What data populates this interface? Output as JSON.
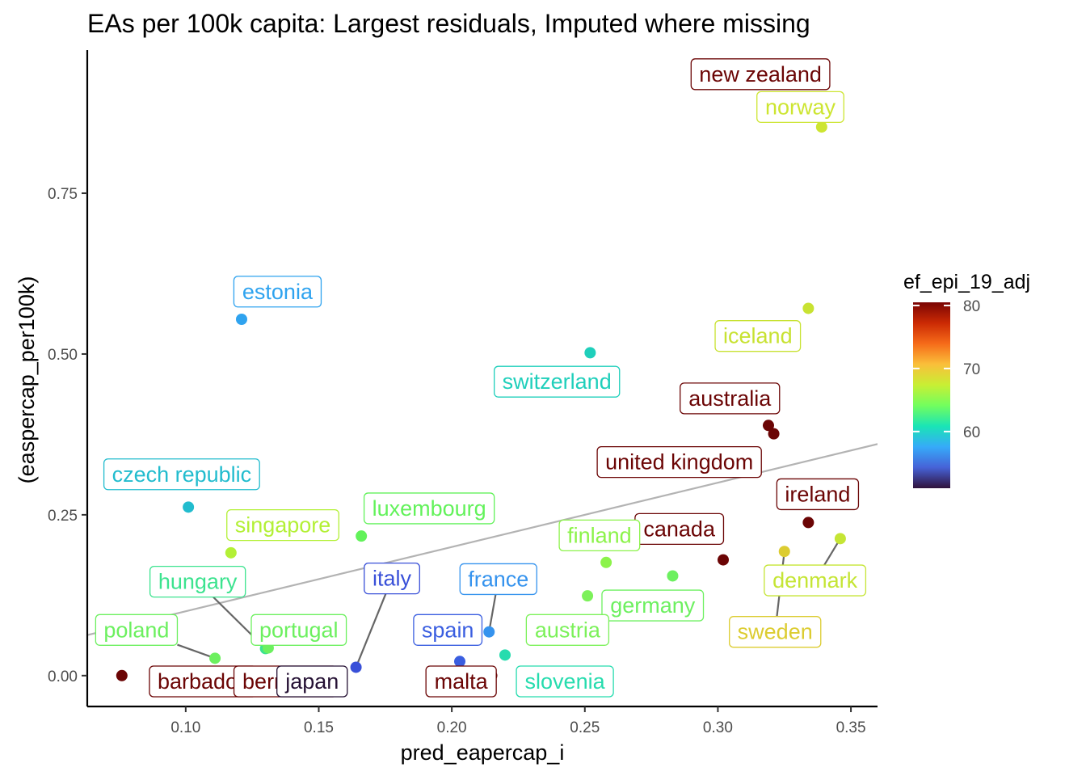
{
  "chart_data": {
    "type": "scatter",
    "title": "EAs per 100k capita: Largest residuals, Imputed where missing",
    "xlabel": "pred_eapercap_i",
    "ylabel": "(easpercap_per100k)",
    "xlim": [
      0.063,
      0.36
    ],
    "ylim": [
      -0.048,
      0.975
    ],
    "x_ticks": [
      {
        "value": 0.1,
        "label": "0.10"
      },
      {
        "value": 0.15,
        "label": "0.15"
      },
      {
        "value": 0.2,
        "label": "0.20"
      },
      {
        "value": 0.25,
        "label": "0.25"
      },
      {
        "value": 0.3,
        "label": "0.30"
      },
      {
        "value": 0.35,
        "label": "0.35"
      }
    ],
    "y_ticks": [
      {
        "value": 0.0,
        "label": "0.00"
      },
      {
        "value": 0.25,
        "label": "0.25"
      },
      {
        "value": 0.5,
        "label": "0.50"
      },
      {
        "value": 0.75,
        "label": "0.75"
      }
    ],
    "grid": false,
    "fit_line": {
      "slope": 1.0,
      "intercept": 0.0,
      "color": "#b3b3b3"
    },
    "legend": {
      "title": "ef_epi_19_adj",
      "placement": "right",
      "range": [
        51,
        80.5
      ],
      "ticks": [
        {
          "value": 60,
          "label": "60"
        },
        {
          "value": 70,
          "label": "70"
        },
        {
          "value": 80,
          "label": "80"
        }
      ],
      "palette": [
        "#30123b",
        "#4662d7",
        "#36aaf9",
        "#1ae4b6",
        "#72fe5e",
        "#c8ef34",
        "#fabf3a",
        "#f66b19",
        "#cb2a04",
        "#7a0403"
      ]
    },
    "points": [
      {
        "name": "new zealand",
        "x": 0.334,
        "y": 0.925,
        "color": "#6b0505"
      },
      {
        "name": "norway",
        "x": 0.339,
        "y": 0.853,
        "color": "#cde531"
      },
      {
        "name": "iceland",
        "x": 0.334,
        "y": 0.571,
        "color": "#c8e232"
      },
      {
        "name": "estonia",
        "x": 0.121,
        "y": 0.554,
        "color": "#2fa3ef"
      },
      {
        "name": "switzerland",
        "x": 0.252,
        "y": 0.502,
        "color": "#1fcfbb"
      },
      {
        "name": "australia",
        "x": 0.319,
        "y": 0.389,
        "color": "#6b0505"
      },
      {
        "name": "united kingdom",
        "x": 0.321,
        "y": 0.376,
        "color": "#6b0505"
      },
      {
        "name": "czech republic",
        "x": 0.101,
        "y": 0.262,
        "color": "#22bcce"
      },
      {
        "name": "ireland",
        "x": 0.334,
        "y": 0.238,
        "color": "#6b0505"
      },
      {
        "name": "luxembourg",
        "x": 0.166,
        "y": 0.217,
        "color": "#62f25a"
      },
      {
        "name": "denmark",
        "x": 0.346,
        "y": 0.213,
        "color": "#c5e535"
      },
      {
        "name": "sweden",
        "x": 0.325,
        "y": 0.193,
        "color": "#dccc31"
      },
      {
        "name": "singapore",
        "x": 0.117,
        "y": 0.191,
        "color": "#b3f036"
      },
      {
        "name": "canada",
        "x": 0.302,
        "y": 0.18,
        "color": "#6b0505"
      },
      {
        "name": "finland",
        "x": 0.258,
        "y": 0.176,
        "color": "#8cf34a"
      },
      {
        "name": "germany",
        "x": 0.283,
        "y": 0.155,
        "color": "#6df060"
      },
      {
        "name": "austria",
        "x": 0.251,
        "y": 0.124,
        "color": "#7cf15a"
      },
      {
        "name": "france",
        "x": 0.214,
        "y": 0.068,
        "color": "#3593ee"
      },
      {
        "name": "hungary",
        "x": 0.13,
        "y": 0.042,
        "color": "#3ce38f"
      },
      {
        "name": "portugal",
        "x": 0.131,
        "y": 0.043,
        "color": "#6cf05f"
      },
      {
        "name": "slovenia",
        "x": 0.22,
        "y": 0.032,
        "color": "#26dcae"
      },
      {
        "name": "poland",
        "x": 0.111,
        "y": 0.027,
        "color": "#6cf05f"
      },
      {
        "name": "spain",
        "x": 0.203,
        "y": 0.022,
        "color": "#3a5ee0"
      },
      {
        "name": "italy",
        "x": 0.164,
        "y": 0.013,
        "color": "#3950d8"
      },
      {
        "name": "barbados",
        "x": 0.076,
        "y": 0.0,
        "color": "#6b0505"
      },
      {
        "name": "bermuda",
        "x": 0.125,
        "y": 0.0,
        "color": "#6b0505"
      },
      {
        "name": "japan",
        "x": 0.15,
        "y": 0.0,
        "color": "#251134"
      },
      {
        "name": "malta",
        "x": 0.215,
        "y": 0.0,
        "color": "#6b0505"
      }
    ],
    "labels": [
      {
        "point": "new zealand",
        "text": "new zealand",
        "lx": 0.316,
        "ly": 0.935,
        "leader": false
      },
      {
        "point": "norway",
        "text": "norway",
        "lx": 0.331,
        "ly": 0.884,
        "leader": false
      },
      {
        "point": "iceland",
        "text": "iceland",
        "lx": 0.315,
        "ly": 0.528,
        "leader": false
      },
      {
        "point": "estonia",
        "text": "estonia",
        "lx": 0.1345,
        "ly": 0.597,
        "leader": false
      },
      {
        "point": "switzerland",
        "text": "switzerland",
        "lx": 0.2395,
        "ly": 0.457,
        "leader": false
      },
      {
        "point": "australia",
        "text": "australia",
        "lx": 0.3045,
        "ly": 0.431,
        "leader": false
      },
      {
        "point": "united kingdom",
        "text": "united kingdom",
        "lx": 0.2855,
        "ly": 0.332,
        "leader": false
      },
      {
        "point": "czech republic",
        "text": "czech republic",
        "lx": 0.0985,
        "ly": 0.313,
        "leader": false
      },
      {
        "point": "ireland",
        "text": "ireland",
        "lx": 0.3375,
        "ly": 0.282,
        "leader": false
      },
      {
        "point": "luxembourg",
        "text": "luxembourg",
        "lx": 0.1915,
        "ly": 0.26,
        "leader": false
      },
      {
        "point": "denmark",
        "text": "denmark",
        "lx": 0.3365,
        "ly": 0.148,
        "leader": true
      },
      {
        "point": "sweden",
        "text": "sweden",
        "lx": 0.3215,
        "ly": 0.068,
        "leader": true
      },
      {
        "point": "singapore",
        "text": "singapore",
        "lx": 0.1365,
        "ly": 0.234,
        "leader": false
      },
      {
        "point": "canada",
        "text": "canada",
        "lx": 0.2855,
        "ly": 0.228,
        "leader": false
      },
      {
        "point": "finland",
        "text": "finland",
        "lx": 0.2555,
        "ly": 0.218,
        "leader": false
      },
      {
        "point": "germany",
        "text": "germany",
        "lx": 0.2755,
        "ly": 0.109,
        "leader": false
      },
      {
        "point": "austria",
        "text": "austria",
        "lx": 0.2435,
        "ly": 0.071,
        "leader": false
      },
      {
        "point": "france",
        "text": "france",
        "lx": 0.2175,
        "ly": 0.15,
        "leader": true
      },
      {
        "point": "hungary",
        "text": "hungary",
        "lx": 0.1045,
        "ly": 0.146,
        "leader": true
      },
      {
        "point": "portugal",
        "text": "portugal",
        "lx": 0.1425,
        "ly": 0.071,
        "leader": false
      },
      {
        "point": "slovenia",
        "text": "slovenia",
        "lx": 0.2425,
        "ly": -0.009,
        "leader": false
      },
      {
        "point": "poland",
        "text": "poland",
        "lx": 0.0815,
        "ly": 0.071,
        "leader": true
      },
      {
        "point": "spain",
        "text": "spain",
        "lx": 0.1985,
        "ly": 0.071,
        "leader": false
      },
      {
        "point": "italy",
        "text": "italy",
        "lx": 0.1775,
        "ly": 0.151,
        "leader": true
      },
      {
        "point": "barbados",
        "text": "barbados",
        "lx": 0.1065,
        "ly": -0.009,
        "leader": false
      },
      {
        "point": "bermuda",
        "text": "bermuda",
        "lx": 0.1375,
        "ly": -0.009,
        "leader": false
      },
      {
        "point": "japan",
        "text": "japan",
        "lx": 0.1475,
        "ly": -0.009,
        "leader": false
      },
      {
        "point": "malta",
        "text": "malta",
        "lx": 0.2035,
        "ly": -0.009,
        "leader": true
      }
    ]
  }
}
